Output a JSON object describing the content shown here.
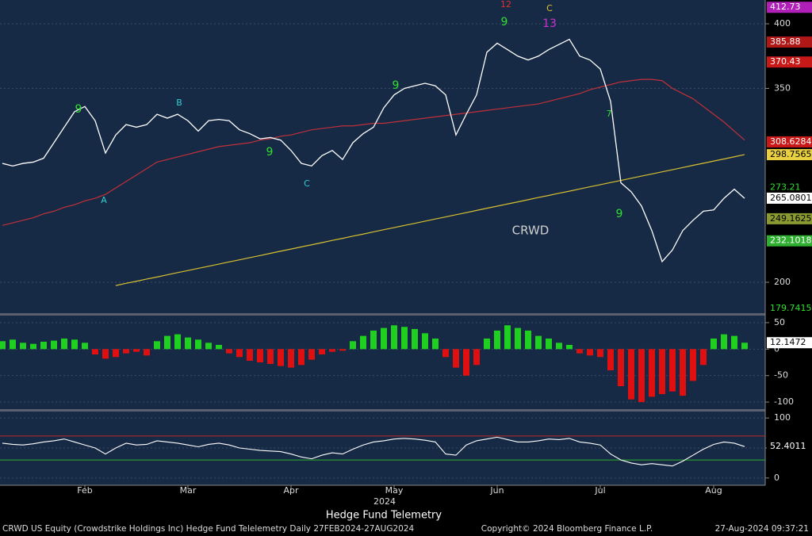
{
  "chart_data": [
    {
      "type": "line",
      "title": "Hedge Fund Telemetry",
      "x_label": "2024",
      "footer_left": "CRWD US Equity (Crowdstrike Holdings Inc) Hedge Fund Telelemetry  Daily 27FEB2024-27AUG2024",
      "footer_center": "Copyright© 2024 Bloomberg Finance L.P.",
      "footer_right": "27-Aug-2024 09:37:21",
      "categories": [
        null,
        null,
        null,
        null,
        null,
        null,
        null,
        null,
        "Feb",
        null,
        null,
        null,
        null,
        null,
        null,
        null,
        null,
        null,
        "Mar",
        null,
        null,
        null,
        null,
        null,
        null,
        null,
        null,
        null,
        "Apr",
        null,
        null,
        null,
        null,
        null,
        null,
        null,
        null,
        null,
        "May",
        null,
        null,
        null,
        null,
        null,
        null,
        null,
        null,
        null,
        "Jun",
        null,
        null,
        null,
        null,
        null,
        null,
        null,
        null,
        null,
        "Jul",
        null,
        null,
        null,
        null,
        null,
        null,
        null,
        null,
        null,
        null,
        "Aug",
        null,
        null,
        null
      ],
      "series": [
        {
          "color": "#ffffff",
          "values": [
            292,
            290,
            292,
            293,
            296,
            308,
            320,
            332,
            336,
            325,
            300,
            314,
            322,
            320,
            322,
            330,
            327,
            330,
            325,
            317,
            325,
            326,
            325,
            318,
            315,
            311,
            312,
            310,
            302,
            292,
            290,
            298,
            302,
            295,
            308,
            315,
            320,
            335,
            345,
            350,
            352,
            354,
            352,
            345,
            314,
            330,
            345,
            378,
            385,
            380,
            375,
            372,
            375,
            380,
            384,
            388,
            375,
            372,
            365,
            340,
            277,
            270,
            259,
            240,
            216,
            225,
            240,
            248,
            255,
            256,
            265,
            272,
            265
          ]
        },
        {
          "color": "#c0303a",
          "values": [
            244,
            246,
            248,
            250,
            253,
            255,
            258,
            260,
            263,
            265,
            268,
            273,
            278,
            283,
            288,
            293,
            295,
            297,
            299,
            301,
            303,
            305,
            306,
            307,
            308,
            310,
            311,
            313,
            314,
            316,
            318,
            319,
            320,
            321,
            321,
            322,
            323,
            323,
            324,
            325,
            326,
            327,
            328,
            329,
            330,
            331,
            332,
            333,
            334,
            335,
            336,
            337,
            338,
            340,
            342,
            344,
            346,
            349,
            351,
            353,
            355,
            356,
            357,
            357,
            356,
            350,
            346,
            342,
            336,
            330,
            324,
            317,
            310
          ]
        },
        {
          "color": "#d8c030",
          "values": [
            null,
            null,
            null,
            null,
            null,
            null,
            null,
            null,
            null,
            null,
            null,
            197.5,
            199.2,
            200.8,
            202.5,
            204.1,
            205.8,
            207.5,
            209.1,
            210.8,
            212.4,
            214.1,
            215.8,
            217.4,
            219.1,
            220.7,
            222.4,
            224.1,
            225.7,
            227.4,
            229.0,
            230.7,
            232.4,
            234.0,
            235.7,
            237.3,
            239.0,
            240.7,
            242.3,
            244.0,
            245.6,
            247.3,
            249.0,
            250.6,
            252.3,
            253.9,
            255.6,
            257.3,
            258.9,
            260.6,
            262.2,
            263.9,
            265.6,
            267.2,
            268.9,
            270.5,
            272.2,
            273.9,
            275.5,
            277.2,
            278.8,
            280.5,
            282.2,
            283.8,
            285.5,
            287.1,
            288.8,
            290.5,
            292.1,
            293.8,
            295.4,
            297.1,
            298.8
          ]
        }
      ],
      "ylim": [
        176.1,
        418.4
      ],
      "yticks": [
        400,
        350,
        200
      ],
      "price_labels": [
        {
          "value": 412.73,
          "bg": "#b020b8",
          "fg": "#ffffff"
        },
        {
          "value": 385.88,
          "bg": "#b01818",
          "fg": "#ffffff"
        },
        {
          "value": 370.43,
          "bg": "#c81818",
          "fg": "#ffffff"
        },
        {
          "value": 308.6284,
          "bg": "#c81818",
          "fg": "#ffffff"
        },
        {
          "value": 298.7565,
          "bg": "#e8d040",
          "fg": "#000000"
        },
        {
          "value": 273.21,
          "bg": "#000000",
          "fg": "#30e030"
        },
        {
          "value": 265.0801,
          "bg": "#ffffff",
          "fg": "#000000"
        },
        {
          "value": 249.1625,
          "bg": "#8a9a30",
          "fg": "#000000"
        },
        {
          "value": 232.1018,
          "bg": "#30b030",
          "fg": "#ffffff"
        },
        {
          "value": 179.7415,
          "bg": "#000000",
          "fg": "#30e030"
        }
      ],
      "annotations": [
        {
          "text": "CRWD",
          "color": "#d0d0d0"
        },
        {
          "text": "A",
          "color": "#30d0d0"
        },
        {
          "text": "B",
          "color": "#30d0d0"
        },
        {
          "text": "C",
          "color": "#30d0d0"
        },
        {
          "text": "C",
          "color": "#e0c030"
        },
        {
          "text": "9",
          "color": "#30e030"
        },
        {
          "text": "9",
          "color": "#30e030"
        },
        {
          "text": "9",
          "color": "#30e030"
        },
        {
          "text": "9",
          "color": "#30e030"
        },
        {
          "text": "9",
          "color": "#30e030"
        },
        {
          "text": "13",
          "color": "#d030d0"
        },
        {
          "text": "12",
          "color": "#e03030"
        },
        {
          "text": "7",
          "color": "#30e030"
        }
      ]
    },
    {
      "type": "histogram-oscillator",
      "positive_color": "#20d020",
      "negative_color": "#e01010",
      "values": [
        15,
        18,
        12,
        10,
        14,
        16,
        20,
        18,
        12,
        -10,
        -18,
        -15,
        -8,
        -5,
        -12,
        15,
        25,
        28,
        22,
        18,
        12,
        8,
        -8,
        -15,
        -22,
        -25,
        -28,
        -32,
        -35,
        -30,
        -20,
        -10,
        -5,
        -3,
        15,
        25,
        35,
        40,
        45,
        42,
        38,
        30,
        20,
        -15,
        -35,
        -50,
        -30,
        20,
        35,
        45,
        40,
        35,
        25,
        20,
        12,
        8,
        -8,
        -12,
        -15,
        -40,
        -70,
        -95,
        -100,
        -90,
        -85,
        -80,
        -88,
        -60,
        -30,
        20,
        28,
        25,
        12.1472
      ],
      "ylim": [
        -113.4,
        63.4
      ],
      "yticks": [
        50,
        0,
        -50,
        -100
      ]
    },
    {
      "type": "oscillator-line",
      "color": "#ffffff",
      "values": [
        58,
        56,
        55,
        57,
        60,
        62,
        65,
        60,
        55,
        50,
        40,
        50,
        58,
        55,
        56,
        62,
        60,
        58,
        55,
        52,
        56,
        58,
        55,
        50,
        48,
        46,
        45,
        44,
        40,
        35,
        32,
        38,
        42,
        40,
        48,
        55,
        60,
        62,
        65,
        66,
        65,
        63,
        60,
        40,
        38,
        55,
        62,
        65,
        68,
        64,
        60,
        60,
        62,
        65,
        64,
        66,
        60,
        58,
        55,
        40,
        30,
        25,
        22,
        24,
        22,
        20,
        28,
        38,
        48,
        56,
        60,
        58,
        52.4011
      ],
      "hlines": [
        {
          "value": 70,
          "color": "#c02828"
        },
        {
          "value": 30,
          "color": "#28b028"
        }
      ],
      "ylim": [
        -10.8,
        110.8
      ],
      "yticks": [
        100,
        50,
        0
      ]
    }
  ]
}
